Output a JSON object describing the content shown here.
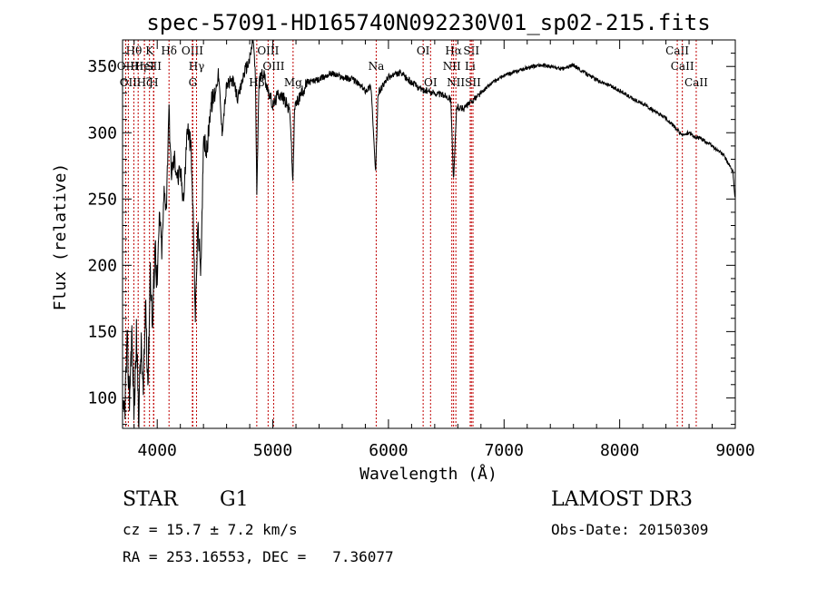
{
  "chart_data": {
    "type": "line",
    "title": "spec-57091-HD165740N092230V01_sp02-215.fits",
    "xlabel": "Wavelength (Å)",
    "ylabel": "Flux (relative)",
    "xlim": [
      3700,
      9000
    ],
    "ylim": [
      77,
      370
    ],
    "x_ticks": [
      4000,
      5000,
      6000,
      7000,
      8000,
      9000
    ],
    "y_ticks": [
      100,
      150,
      200,
      250,
      300,
      350
    ],
    "series": [
      {
        "color": "#000000",
        "points": [
          [
            3700,
            80
          ],
          [
            3720,
            95
          ],
          [
            3740,
            140
          ],
          [
            3760,
            100
          ],
          [
            3780,
            150
          ],
          [
            3800,
            90
          ],
          [
            3820,
            145
          ],
          [
            3840,
            88
          ],
          [
            3860,
            140
          ],
          [
            3880,
            100
          ],
          [
            3900,
            175
          ],
          [
            3920,
            110
          ],
          [
            3940,
            200
          ],
          [
            3960,
            150
          ],
          [
            3980,
            220
          ],
          [
            4000,
            185
          ],
          [
            4020,
            240
          ],
          [
            4040,
            210
          ],
          [
            4060,
            255
          ],
          [
            4080,
            245
          ],
          [
            4100,
            320
          ],
          [
            4120,
            270
          ],
          [
            4150,
            280
          ],
          [
            4180,
            265
          ],
          [
            4200,
            270
          ],
          [
            4230,
            250
          ],
          [
            4260,
            305
          ],
          [
            4290,
            290
          ],
          [
            4310,
            240
          ],
          [
            4330,
            160
          ],
          [
            4350,
            230
          ],
          [
            4380,
            195
          ],
          [
            4400,
            300
          ],
          [
            4430,
            285
          ],
          [
            4460,
            320
          ],
          [
            4500,
            330
          ],
          [
            4530,
            345
          ],
          [
            4560,
            300
          ],
          [
            4600,
            335
          ],
          [
            4650,
            340
          ],
          [
            4700,
            325
          ],
          [
            4750,
            345
          ],
          [
            4800,
            355
          ],
          [
            4830,
            372
          ],
          [
            4850,
            340
          ],
          [
            4861,
            250
          ],
          [
            4880,
            340
          ],
          [
            4920,
            345
          ],
          [
            4950,
            335
          ],
          [
            5000,
            320
          ],
          [
            5050,
            330
          ],
          [
            5100,
            325
          ],
          [
            5150,
            315
          ],
          [
            5172,
            262
          ],
          [
            5190,
            320
          ],
          [
            5250,
            330
          ],
          [
            5300,
            338
          ],
          [
            5400,
            340
          ],
          [
            5500,
            345
          ],
          [
            5600,
            342
          ],
          [
            5700,
            340
          ],
          [
            5800,
            332
          ],
          [
            5850,
            335
          ],
          [
            5889,
            268
          ],
          [
            5910,
            330
          ],
          [
            5950,
            335
          ],
          [
            6000,
            342
          ],
          [
            6100,
            345
          ],
          [
            6200,
            338
          ],
          [
            6300,
            332
          ],
          [
            6400,
            330
          ],
          [
            6500,
            328
          ],
          [
            6540,
            325
          ],
          [
            6563,
            262
          ],
          [
            6590,
            320
          ],
          [
            6650,
            318
          ],
          [
            6700,
            322
          ],
          [
            6800,
            330
          ],
          [
            6900,
            338
          ],
          [
            7000,
            343
          ],
          [
            7100,
            346
          ],
          [
            7200,
            349
          ],
          [
            7300,
            351
          ],
          [
            7400,
            350
          ],
          [
            7500,
            348
          ],
          [
            7600,
            351
          ],
          [
            7700,
            345
          ],
          [
            7800,
            340
          ],
          [
            7900,
            336
          ],
          [
            8000,
            332
          ],
          [
            8100,
            326
          ],
          [
            8200,
            322
          ],
          [
            8300,
            316
          ],
          [
            8400,
            311
          ],
          [
            8498,
            302
          ],
          [
            8542,
            298
          ],
          [
            8600,
            300
          ],
          [
            8662,
            296
          ],
          [
            8700,
            296
          ],
          [
            8800,
            290
          ],
          [
            8900,
            283
          ],
          [
            8950,
            275
          ],
          [
            8980,
            270
          ],
          [
            9000,
            248
          ]
        ]
      }
    ],
    "lines": [
      {
        "wl": 3798,
        "name": "Hθ",
        "row": 0
      },
      {
        "wl": 3727,
        "name": "OII",
        "row": 1
      },
      {
        "wl": 3750,
        "name": "OII",
        "row": 2
      },
      {
        "wl": 3835,
        "name": "Hη",
        "row": 1
      },
      {
        "wl": 3889,
        "name": "HeI",
        "row": 1
      },
      {
        "wl": 3889,
        "name": "Hζ",
        "row": 2
      },
      {
        "wl": 3933,
        "name": "K",
        "row": 0
      },
      {
        "wl": 3968,
        "name": "SII",
        "row": 1
      },
      {
        "wl": 3970,
        "name": "H",
        "row": 2
      },
      {
        "wl": 4102,
        "name": "Hδ",
        "row": 0
      },
      {
        "wl": 4304,
        "name": "OIII",
        "row": 0
      },
      {
        "wl": 4340,
        "name": "Hγ",
        "row": 1
      },
      {
        "wl": 4308,
        "name": "G",
        "row": 2
      },
      {
        "wl": 4861,
        "name": "Hβ",
        "row": 2
      },
      {
        "wl": 4959,
        "name": "OIII",
        "row": 0
      },
      {
        "wl": 5007,
        "name": "OIII",
        "row": 1
      },
      {
        "wl": 5175,
        "name": "Mg",
        "row": 2
      },
      {
        "wl": 5894,
        "name": "Na",
        "row": 1
      },
      {
        "wl": 6300,
        "name": "OI",
        "row": 0
      },
      {
        "wl": 6364,
        "name": "OI",
        "row": 2
      },
      {
        "wl": 6563,
        "name": "Hα",
        "row": 0
      },
      {
        "wl": 6548,
        "name": "NII",
        "row": 1
      },
      {
        "wl": 6583,
        "name": "NII",
        "row": 2
      },
      {
        "wl": 6717,
        "name": "SII",
        "row": 0
      },
      {
        "wl": 6707,
        "name": "Li",
        "row": 1
      },
      {
        "wl": 6731,
        "name": "SII",
        "row": 2
      },
      {
        "wl": 8498,
        "name": "CaII",
        "row": 0
      },
      {
        "wl": 8542,
        "name": "CaII",
        "row": 1
      },
      {
        "wl": 8662,
        "name": "CaII",
        "row": 2
      }
    ]
  },
  "info": {
    "class": "STAR",
    "subclass": "G1",
    "survey": "LAMOST DR3",
    "cz": "cz = 15.7 ± 7.2 km/s",
    "obs_date": "Obs-Date: 20150309",
    "coords": "RA = 253.16553, DEC =   7.36077"
  }
}
